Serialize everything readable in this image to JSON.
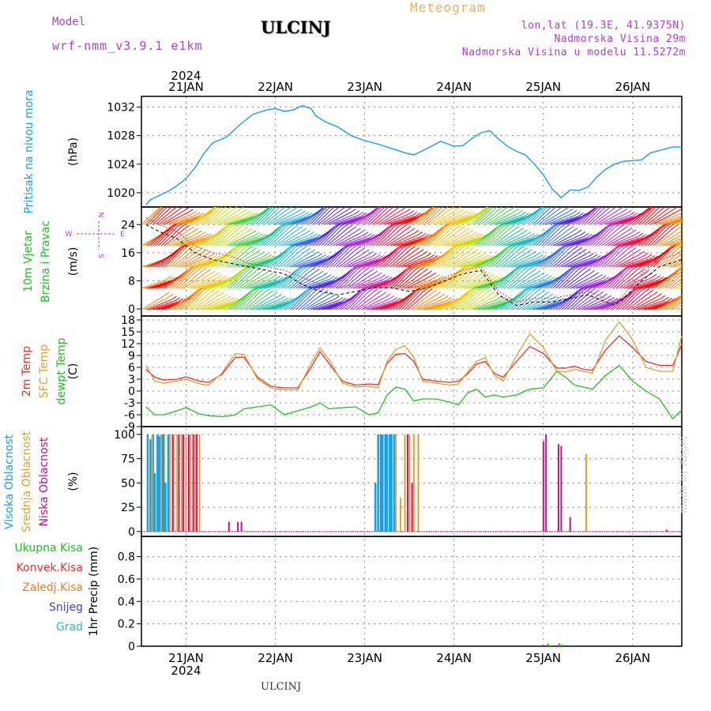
{
  "header": {
    "model_label": "Model",
    "model_name": "wrf-nmm_v3.9.1 e1km",
    "station": "ULCINJ",
    "meteogram": "Meteogram",
    "lonlat": "lon,lat (19.3E, 41.9375N)",
    "elevation": "Nadmorska Visina 29m",
    "model_elevation": "Nadmorska Visina u modelu 11.5272m"
  },
  "footer": {
    "station": "ULCINJ",
    "watermark": "made by Angel"
  },
  "colors": {
    "pressure": "#1aa0e0",
    "temp2m": "#e83030",
    "sfc": "#e0a030",
    "dewpt": "#20c020",
    "high_cloud": "#1aa0e0",
    "mid_cloud": "#e0a030",
    "low_cloud": "#c0148c",
    "total_precip": "#20c020",
    "conv_precip": "#e83030",
    "frz_precip": "#f08020",
    "snow": "#4040e0",
    "graupel": "#20c0c0",
    "wind_label": "#20c020",
    "compass": "#b040d0"
  },
  "chart_data": [
    {
      "type": "line",
      "panel": "pressure",
      "ylabel": "(hPa)",
      "side_labels": [
        "Pritisak na nivou mora"
      ],
      "yticks": [
        1020,
        1024,
        1028,
        1032
      ],
      "ylim": [
        1018,
        1033.5
      ],
      "x_days": [
        0.55,
        0.6,
        0.7,
        0.8,
        0.9,
        1.0,
        1.1,
        1.2,
        1.3,
        1.45,
        1.6,
        1.75,
        1.9,
        2.0,
        2.1,
        2.2,
        2.3,
        2.4,
        2.45,
        2.55,
        2.7,
        2.85,
        3.0,
        3.15,
        3.3,
        3.45,
        3.55,
        3.7,
        3.85,
        4.0,
        4.1,
        4.2,
        4.3,
        4.4,
        4.5,
        4.6,
        4.7,
        4.8,
        4.9,
        5.0,
        5.1,
        5.2,
        5.3,
        5.4,
        5.5,
        5.6,
        5.7,
        5.8,
        5.9,
        6.0,
        6.1,
        6.2,
        6.3,
        6.45,
        6.55
      ],
      "values": [
        1018.3,
        1019,
        1019.6,
        1020.2,
        1021,
        1022,
        1023.5,
        1025.5,
        1027,
        1027.8,
        1029.5,
        1031,
        1031.6,
        1031.8,
        1031.4,
        1031.6,
        1032.2,
        1031.8,
        1030.8,
        1030,
        1029.2,
        1028,
        1027.3,
        1026.8,
        1026.2,
        1025.6,
        1025.3,
        1026.2,
        1027.2,
        1026.5,
        1026.6,
        1027.6,
        1028.4,
        1028.7,
        1027.5,
        1026.5,
        1025.8,
        1025.3,
        1024,
        1022.5,
        1020.5,
        1019.3,
        1020.4,
        1020.3,
        1020.8,
        1022.2,
        1023.3,
        1024,
        1024.4,
        1024.5,
        1024.6,
        1025.6,
        1025.9,
        1026.4,
        1026.4
      ]
    },
    {
      "type": "line",
      "panel": "wind",
      "ylabel": "(m/s)",
      "side_labels": [
        "10m Vjetar",
        "Brzina i Pravac"
      ],
      "yticks": [
        0,
        8,
        16,
        24
      ],
      "ylim": [
        -2,
        29
      ],
      "compass": [
        "N",
        "W",
        "E",
        "S"
      ],
      "x_days": [
        0.55,
        0.7,
        0.9,
        1.1,
        1.3,
        1.5,
        1.7,
        1.9,
        2.1,
        2.3,
        2.5,
        2.7,
        2.9,
        3.1,
        3.3,
        3.5,
        3.7,
        3.9,
        4.1,
        4.3,
        4.5,
        4.7,
        4.9,
        5.1,
        5.3,
        5.5,
        5.7,
        5.8,
        5.9,
        6.1,
        6.3,
        6.55
      ],
      "series": [
        {
          "role": "speed",
          "values": [
            24,
            22,
            20,
            16,
            14,
            13,
            12,
            11,
            10,
            7,
            5,
            4,
            5,
            6,
            6,
            5,
            6,
            8,
            10,
            11,
            4,
            1,
            2,
            2,
            3,
            4,
            2,
            1,
            3,
            8,
            12,
            14
          ]
        },
        {
          "role": "gust",
          "values": [
            26,
            24,
            22,
            18,
            16,
            15,
            13,
            12,
            11,
            9,
            7,
            6,
            7,
            7,
            7,
            6,
            7,
            9,
            11,
            12,
            5,
            2,
            3,
            3,
            4,
            5,
            3,
            2,
            4,
            10,
            14,
            16
          ]
        }
      ],
      "direction_cycle": [
        "#ff0000",
        "#ff8000",
        "#ffc000",
        "#c0e000",
        "#40d040",
        "#10c0a0",
        "#20b0e0",
        "#3060f0",
        "#5020e0",
        "#9020e0",
        "#c020c0",
        "#ff0040"
      ]
    },
    {
      "type": "line",
      "panel": "temperature",
      "ylabel": "(C)",
      "side_labels": [
        "2m Temp",
        "SFC Temp",
        "dewpt Temp"
      ],
      "yticks": [
        -9,
        -6,
        -3,
        0,
        3,
        6,
        9,
        12,
        15,
        18
      ],
      "ylim": [
        -9,
        19
      ],
      "x_days": [
        0.55,
        0.65,
        0.75,
        0.9,
        1.0,
        1.15,
        1.25,
        1.4,
        1.55,
        1.65,
        1.8,
        1.95,
        2.1,
        2.25,
        2.4,
        2.5,
        2.6,
        2.75,
        2.9,
        3.05,
        3.15,
        3.25,
        3.35,
        3.45,
        3.55,
        3.65,
        3.8,
        3.95,
        4.05,
        4.15,
        4.25,
        4.35,
        4.45,
        4.55,
        4.7,
        4.85,
        5.0,
        5.15,
        5.25,
        5.35,
        5.45,
        5.55,
        5.7,
        5.85,
        6.0,
        6.15,
        6.3,
        6.45,
        6.55
      ],
      "series": [
        {
          "name": "2m Temp",
          "values": [
            5.5,
            3.5,
            2.8,
            3,
            3.6,
            2.5,
            2.2,
            4.2,
            8.5,
            8.6,
            3.5,
            1.2,
            0.8,
            0.8,
            6,
            10,
            7,
            2.5,
            1.5,
            1.8,
            1.6,
            7,
            9.3,
            9.5,
            7.5,
            3,
            2.5,
            2.2,
            2.5,
            4.3,
            6.8,
            7.5,
            4.5,
            3.5,
            7.5,
            11.3,
            9.5,
            5.8,
            5.8,
            6.3,
            5.5,
            5.3,
            10.5,
            14,
            11,
            7.5,
            6.5,
            6.5,
            11.8
          ]
        },
        {
          "name": "SFC Temp",
          "values": [
            6.5,
            2.5,
            2,
            2.5,
            3,
            1.8,
            1.5,
            4.5,
            9.5,
            9.3,
            3,
            0.8,
            0.3,
            0.3,
            7,
            11,
            8,
            2,
            1,
            1.2,
            0.8,
            7.5,
            10.5,
            11.5,
            8.5,
            2.5,
            2,
            1.5,
            1.8,
            4.8,
            7.5,
            8.5,
            4,
            2.5,
            9,
            14.5,
            11,
            5,
            4.8,
            5.5,
            5,
            4.5,
            13,
            17.5,
            13,
            6,
            5,
            5,
            14
          ]
        },
        {
          "name": "dewpt Temp",
          "values": [
            -4,
            -6,
            -6,
            -5,
            -4.2,
            -5.8,
            -6.2,
            -6.5,
            -6,
            -4.5,
            -4,
            -3.5,
            -6,
            -5,
            -4,
            -3,
            -4.5,
            -4.2,
            -4,
            -6,
            -5.5,
            -1,
            1,
            0.5,
            -2.5,
            -2,
            -2,
            -2.8,
            -3.5,
            -0.5,
            0.5,
            -1.5,
            -1,
            -1.5,
            -1,
            0.5,
            0.8,
            5,
            3.5,
            1.5,
            1,
            0.5,
            4,
            6.5,
            2.5,
            0,
            -2,
            -7,
            -4.8
          ]
        }
      ]
    },
    {
      "type": "bar",
      "panel": "cloud_cover",
      "ylabel": "(%)",
      "side_labels": [
        "Visoka Oblacnost",
        "Srednja Oblacnost",
        "Niska Oblacnost"
      ],
      "yticks": [
        0,
        25,
        50,
        75,
        100
      ],
      "ylim": [
        -5,
        108
      ],
      "series": [
        {
          "name": "Visoka Oblacnost",
          "x_days": [
            0.57,
            0.6,
            0.63,
            0.65,
            0.68,
            0.7,
            0.73,
            0.75,
            0.77,
            0.8,
            3.12,
            3.15,
            3.18,
            3.2,
            3.23,
            3.25,
            3.28,
            3.3,
            3.33
          ],
          "values": [
            100,
            95,
            100,
            60,
            100,
            98,
            100,
            100,
            50,
            100,
            50,
            100,
            100,
            100,
            100,
            100,
            100,
            100,
            100
          ]
        },
        {
          "name": "Srednja Oblacnost",
          "x_days": [
            0.62,
            0.72,
            0.82,
            0.86,
            0.9,
            0.95,
            1.0,
            1.05,
            1.1,
            1.15,
            3.35,
            3.4,
            3.45,
            3.5,
            3.55,
            3.6,
            5.48
          ],
          "values": [
            98,
            100,
            100,
            100,
            100,
            100,
            98,
            100,
            100,
            100,
            100,
            35,
            100,
            100,
            100,
            100,
            80
          ]
        },
        {
          "name": "Niska Oblacnost",
          "x_days": [
            0.85,
            0.92,
            0.97,
            1.03,
            1.08,
            1.12,
            1.48,
            1.58,
            1.62,
            3.48,
            3.53,
            5.0,
            5.03,
            5.17,
            5.2,
            5.3,
            6.38
          ],
          "values": [
            100,
            100,
            100,
            100,
            100,
            100,
            10,
            10,
            10,
            100,
            50,
            93,
            100,
            90,
            88,
            15,
            2
          ]
        }
      ]
    },
    {
      "type": "bar",
      "panel": "precipitation",
      "ylabel": "1hr Precip (mm)",
      "side_labels": [
        "Ukupna Kisa",
        "Konvek.Kisa",
        "Zaledj.Kisa",
        "Snijeg",
        "Grad"
      ],
      "yticks": [
        0,
        0.2,
        0.4,
        0.6,
        0.8
      ],
      "ylim": [
        0,
        0.98
      ],
      "series": [
        {
          "name": "Ukupna Kisa",
          "x_days": [
            5.05,
            5.08,
            5.18,
            5.22,
            5.3
          ],
          "values": [
            0.02,
            0.01,
            0.025,
            0.015,
            0.01
          ]
        }
      ]
    }
  ],
  "x_axis": {
    "day_labels": [
      "21JAN",
      "22JAN",
      "23JAN",
      "24JAN",
      "25JAN",
      "26JAN"
    ],
    "year": "2024"
  }
}
